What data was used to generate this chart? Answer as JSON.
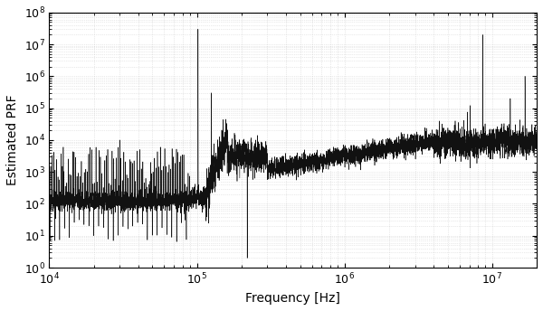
{
  "xlim": [
    10000.0,
    20000000.0
  ],
  "ylim": [
    1.0,
    100000000.0
  ],
  "xlabel": "Frequency [Hz]",
  "ylabel": "Estimated PRF",
  "xlabel_fontsize": 10,
  "ylabel_fontsize": 10,
  "tick_fontsize": 9,
  "background_color": "#ffffff",
  "line_color": "#111111",
  "linewidth": 0.4,
  "figsize": [
    6.0,
    3.44
  ],
  "dpi": 100,
  "grid_color": "#aaaaaa",
  "grid_alpha": 0.5,
  "seed": 1234
}
